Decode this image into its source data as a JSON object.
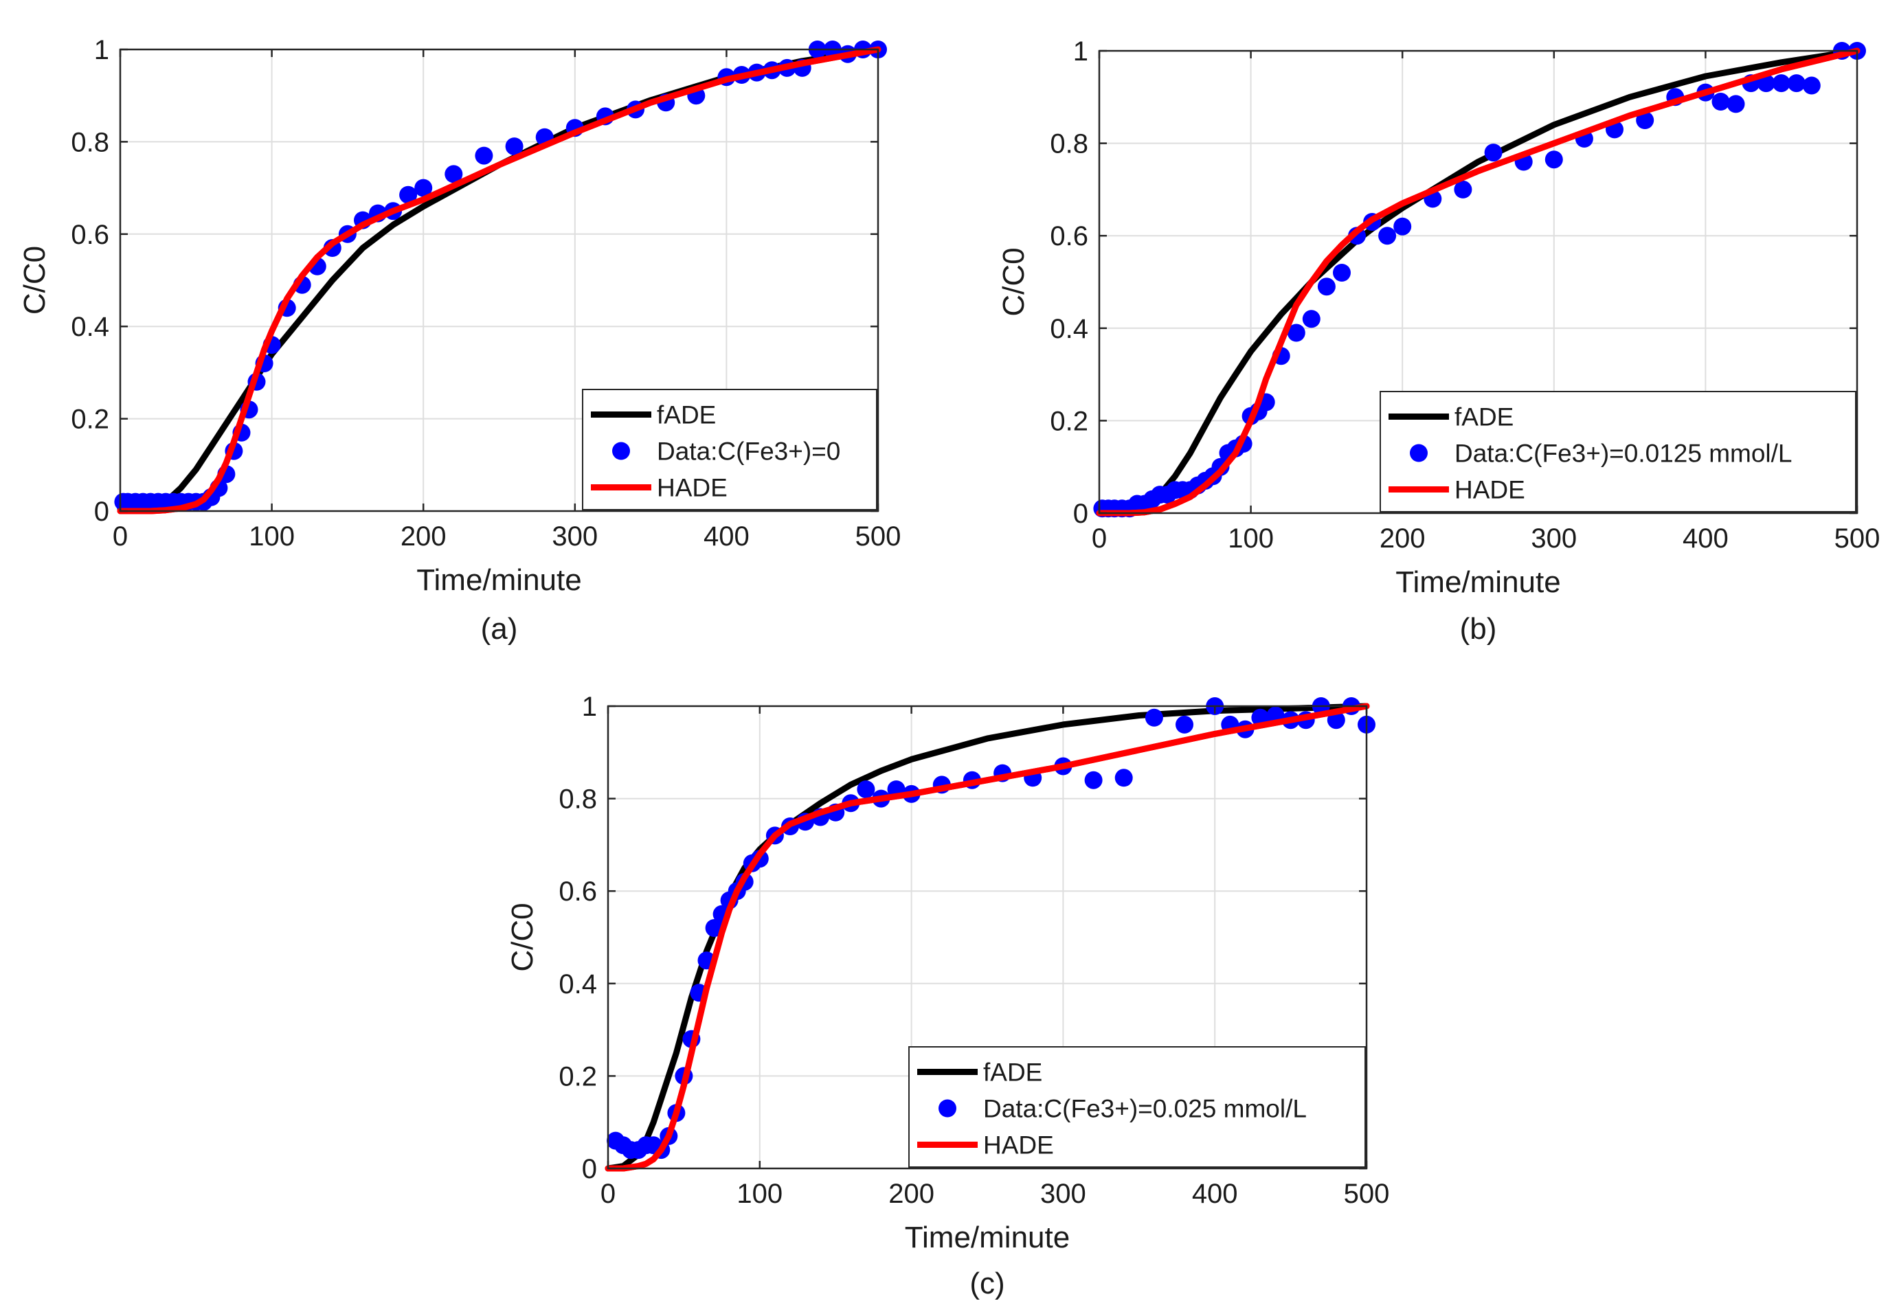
{
  "chart_data": [
    {
      "type": "line",
      "panel_label": "(a)",
      "xlabel": "Time/minute",
      "ylabel": "C/C0",
      "xlim": [
        0,
        500
      ],
      "ylim": [
        0,
        1
      ],
      "xticks": [
        "0",
        "100",
        "200",
        "300",
        "400",
        "500"
      ],
      "yticks": [
        "0",
        "0.2",
        "0.4",
        "0.6",
        "0.8",
        "1"
      ],
      "grid": true,
      "legend": {
        "placement": "bottom-right",
        "entries": [
          "fADE",
          "Data:C(Fe3+)=0",
          "HADE"
        ]
      },
      "series": [
        {
          "name": "fADE",
          "color": "#000000",
          "kind": "line",
          "x": [
            0,
            20,
            30,
            40,
            50,
            60,
            70,
            80,
            90,
            100,
            110,
            120,
            140,
            160,
            180,
            200,
            250,
            300,
            350,
            400,
            450,
            500
          ],
          "y": [
            0.005,
            0.01,
            0.02,
            0.05,
            0.09,
            0.14,
            0.19,
            0.24,
            0.29,
            0.34,
            0.38,
            0.42,
            0.5,
            0.57,
            0.62,
            0.66,
            0.75,
            0.83,
            0.89,
            0.94,
            0.975,
            1.0
          ]
        },
        {
          "name": "Data:C(Fe3+)=0",
          "color": "#0000ff",
          "kind": "scatter",
          "x": [
            2,
            5,
            10,
            15,
            20,
            25,
            30,
            35,
            40,
            45,
            50,
            55,
            60,
            65,
            70,
            75,
            80,
            85,
            90,
            95,
            100,
            110,
            120,
            130,
            140,
            150,
            160,
            170,
            180,
            190,
            200,
            220,
            240,
            260,
            280,
            300,
            320,
            340,
            360,
            380,
            400,
            410,
            420,
            430,
            440,
            450,
            460,
            470,
            480,
            490,
            500
          ],
          "y": [
            0.02,
            0.02,
            0.02,
            0.02,
            0.02,
            0.02,
            0.02,
            0.02,
            0.02,
            0.02,
            0.02,
            0.02,
            0.03,
            0.05,
            0.08,
            0.13,
            0.17,
            0.22,
            0.28,
            0.32,
            0.36,
            0.44,
            0.49,
            0.53,
            0.57,
            0.6,
            0.63,
            0.645,
            0.65,
            0.685,
            0.7,
            0.73,
            0.77,
            0.79,
            0.81,
            0.83,
            0.855,
            0.87,
            0.885,
            0.9,
            0.94,
            0.945,
            0.95,
            0.955,
            0.96,
            0.96,
            1.0,
            1.0,
            0.99,
            1.0,
            1.0
          ]
        },
        {
          "name": "HADE",
          "color": "#ff0000",
          "kind": "line",
          "x": [
            0,
            20,
            30,
            40,
            50,
            55,
            60,
            65,
            70,
            75,
            80,
            85,
            90,
            95,
            100,
            110,
            120,
            130,
            140,
            160,
            180,
            200,
            250,
            300,
            350,
            400,
            450,
            500
          ],
          "y": [
            0.0,
            0.0,
            0.002,
            0.006,
            0.015,
            0.025,
            0.045,
            0.07,
            0.105,
            0.15,
            0.2,
            0.25,
            0.3,
            0.35,
            0.39,
            0.46,
            0.51,
            0.55,
            0.58,
            0.62,
            0.65,
            0.675,
            0.75,
            0.82,
            0.885,
            0.935,
            0.97,
            1.0
          ]
        }
      ]
    },
    {
      "type": "line",
      "panel_label": "(b)",
      "xlabel": "Time/minute",
      "ylabel": "C/C0",
      "xlim": [
        0,
        500
      ],
      "ylim": [
        0,
        1
      ],
      "xticks": [
        "0",
        "100",
        "200",
        "300",
        "400",
        "500"
      ],
      "yticks": [
        "0",
        "0.2",
        "0.4",
        "0.6",
        "0.8",
        "1"
      ],
      "grid": true,
      "legend": {
        "placement": "bottom-right",
        "entries": [
          "fADE",
          "Data:C(Fe3+)=0.0125 mmol/L",
          "HADE"
        ]
      },
      "series": [
        {
          "name": "fADE",
          "color": "#000000",
          "kind": "line",
          "x": [
            0,
            20,
            30,
            40,
            50,
            60,
            70,
            80,
            90,
            100,
            110,
            120,
            130,
            140,
            150,
            160,
            170,
            180,
            200,
            250,
            300,
            350,
            400,
            450,
            500
          ],
          "y": [
            0.0,
            0.005,
            0.015,
            0.04,
            0.08,
            0.13,
            0.19,
            0.25,
            0.3,
            0.35,
            0.39,
            0.43,
            0.465,
            0.5,
            0.53,
            0.56,
            0.59,
            0.615,
            0.66,
            0.76,
            0.84,
            0.9,
            0.945,
            0.975,
            1.0
          ]
        },
        {
          "name": "Data:C(Fe3+)=0.0125 mmol/L",
          "color": "#0000ff",
          "kind": "scatter",
          "x": [
            2,
            6,
            10,
            15,
            20,
            25,
            30,
            35,
            40,
            45,
            50,
            55,
            60,
            65,
            70,
            75,
            80,
            85,
            90,
            95,
            100,
            105,
            110,
            120,
            130,
            140,
            150,
            160,
            170,
            180,
            190,
            200,
            220,
            240,
            260,
            280,
            300,
            320,
            340,
            360,
            380,
            400,
            410,
            420,
            430,
            440,
            450,
            460,
            470,
            490,
            500
          ],
          "y": [
            0.01,
            0.01,
            0.01,
            0.01,
            0.01,
            0.02,
            0.02,
            0.03,
            0.04,
            0.04,
            0.05,
            0.05,
            0.05,
            0.06,
            0.07,
            0.08,
            0.1,
            0.13,
            0.14,
            0.15,
            0.21,
            0.22,
            0.24,
            0.34,
            0.39,
            0.42,
            0.49,
            0.52,
            0.6,
            0.63,
            0.6,
            0.62,
            0.68,
            0.7,
            0.78,
            0.76,
            0.765,
            0.81,
            0.83,
            0.85,
            0.9,
            0.91,
            0.89,
            0.885,
            0.93,
            0.93,
            0.93,
            0.93,
            0.925,
            1.0,
            1.0
          ]
        },
        {
          "name": "HADE",
          "color": "#ff0000",
          "kind": "line",
          "x": [
            0,
            20,
            30,
            40,
            50,
            60,
            70,
            80,
            90,
            100,
            105,
            110,
            120,
            130,
            140,
            150,
            160,
            170,
            180,
            200,
            250,
            300,
            350,
            400,
            450,
            500
          ],
          "y": [
            0.0,
            0.0,
            0.002,
            0.008,
            0.02,
            0.035,
            0.06,
            0.09,
            0.13,
            0.2,
            0.24,
            0.29,
            0.37,
            0.45,
            0.5,
            0.545,
            0.58,
            0.61,
            0.635,
            0.67,
            0.74,
            0.8,
            0.86,
            0.91,
            0.96,
            1.0
          ]
        }
      ]
    },
    {
      "type": "line",
      "panel_label": "(c)",
      "xlabel": "Time/minute",
      "ylabel": "C/C0",
      "xlim": [
        0,
        500
      ],
      "ylim": [
        0,
        1
      ],
      "xticks": [
        "0",
        "100",
        "200",
        "300",
        "400",
        "500"
      ],
      "yticks": [
        "0",
        "0.2",
        "0.4",
        "0.6",
        "0.8",
        "1"
      ],
      "grid": true,
      "legend": {
        "placement": "bottom-right",
        "entries": [
          "fADE",
          "Data:C(Fe3+)=0.025 mmol/L",
          "HADE"
        ]
      },
      "series": [
        {
          "name": "fADE",
          "color": "#000000",
          "kind": "line",
          "x": [
            0,
            10,
            20,
            25,
            30,
            35,
            40,
            45,
            50,
            55,
            60,
            65,
            70,
            75,
            80,
            85,
            90,
            100,
            110,
            120,
            140,
            160,
            180,
            200,
            250,
            300,
            350,
            400,
            450,
            500
          ],
          "y": [
            0.0,
            0.005,
            0.03,
            0.06,
            0.1,
            0.15,
            0.2,
            0.25,
            0.31,
            0.37,
            0.42,
            0.47,
            0.51,
            0.55,
            0.59,
            0.62,
            0.65,
            0.69,
            0.72,
            0.745,
            0.79,
            0.83,
            0.86,
            0.885,
            0.93,
            0.96,
            0.98,
            0.99,
            0.995,
            1.0
          ]
        },
        {
          "name": "Data:C(Fe3+)=0.025 mmol/L",
          "color": "#0000ff",
          "kind": "scatter",
          "x": [
            5,
            10,
            15,
            20,
            25,
            30,
            35,
            40,
            45,
            50,
            55,
            60,
            65,
            70,
            75,
            80,
            85,
            90,
            95,
            100,
            110,
            120,
            130,
            140,
            150,
            160,
            170,
            180,
            190,
            200,
            220,
            240,
            260,
            280,
            300,
            320,
            340,
            360,
            380,
            400,
            410,
            420,
            430,
            440,
            450,
            460,
            470,
            480,
            490,
            500
          ],
          "y": [
            0.06,
            0.05,
            0.04,
            0.04,
            0.05,
            0.05,
            0.04,
            0.07,
            0.12,
            0.2,
            0.28,
            0.38,
            0.45,
            0.52,
            0.55,
            0.58,
            0.6,
            0.62,
            0.66,
            0.67,
            0.72,
            0.74,
            0.75,
            0.76,
            0.77,
            0.79,
            0.82,
            0.8,
            0.82,
            0.81,
            0.83,
            0.84,
            0.855,
            0.845,
            0.87,
            0.84,
            0.845,
            0.975,
            0.96,
            1.0,
            0.96,
            0.95,
            0.975,
            0.98,
            0.97,
            0.97,
            1.0,
            0.97,
            1.0,
            0.96
          ]
        },
        {
          "name": "HADE",
          "color": "#ff0000",
          "kind": "line",
          "x": [
            0,
            10,
            20,
            25,
            30,
            35,
            40,
            45,
            50,
            55,
            60,
            65,
            70,
            75,
            80,
            85,
            90,
            95,
            100,
            110,
            120,
            140,
            160,
            180,
            200,
            250,
            300,
            350,
            400,
            450,
            500
          ],
          "y": [
            0.0,
            0.0,
            0.005,
            0.01,
            0.02,
            0.04,
            0.07,
            0.12,
            0.18,
            0.25,
            0.32,
            0.39,
            0.45,
            0.51,
            0.56,
            0.6,
            0.63,
            0.655,
            0.68,
            0.72,
            0.745,
            0.77,
            0.79,
            0.8,
            0.81,
            0.84,
            0.87,
            0.905,
            0.94,
            0.97,
            1.0
          ]
        }
      ]
    }
  ]
}
